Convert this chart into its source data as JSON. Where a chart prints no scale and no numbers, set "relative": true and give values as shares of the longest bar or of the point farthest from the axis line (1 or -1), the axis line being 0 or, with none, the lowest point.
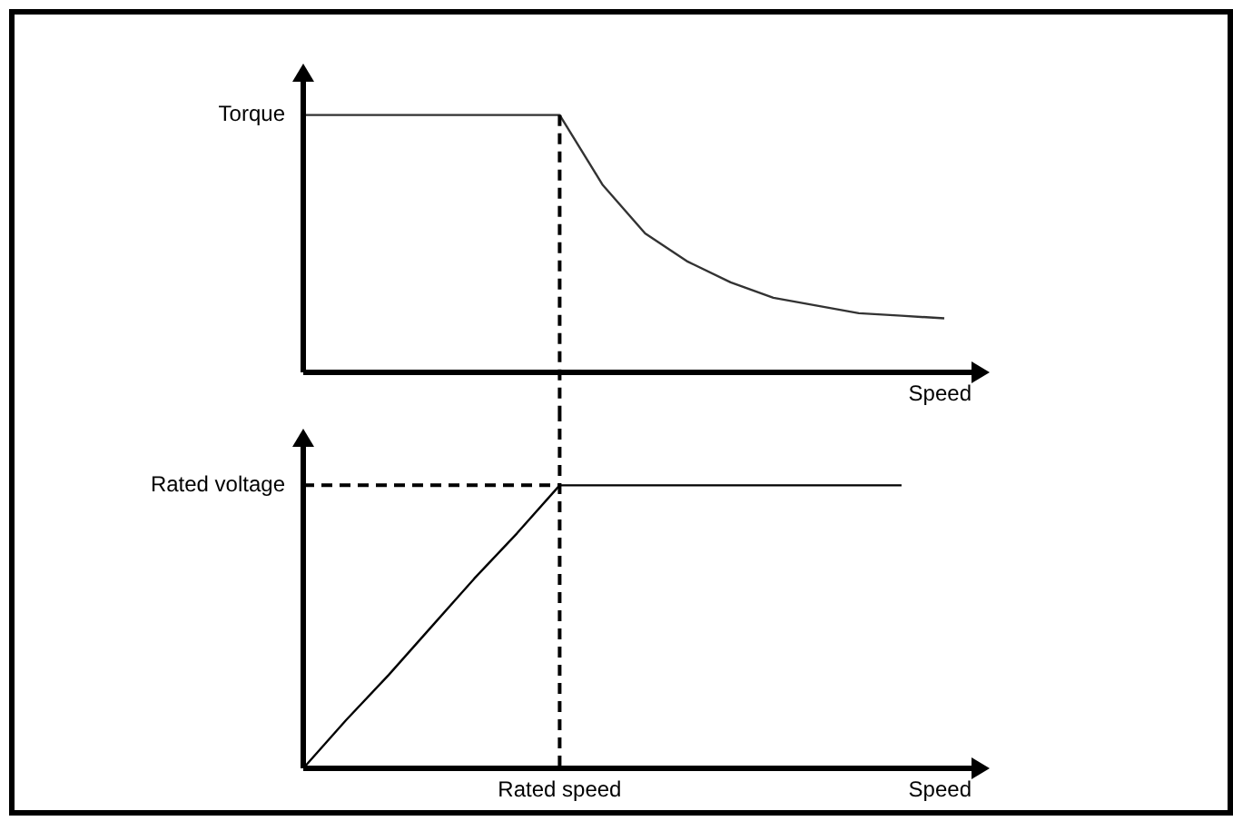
{
  "chart_data": [
    {
      "type": "line",
      "relative": true,
      "xlabel": "Speed",
      "ylabel": "Torque",
      "grid": false,
      "legend": false,
      "marker": "none",
      "categories": [
        null,
        null,
        null,
        null,
        null,
        null,
        null,
        null,
        null,
        null,
        null,
        null,
        null,
        null,
        null,
        null
      ],
      "series": [
        {
          "color": "#333333",
          "values": [
            1,
            1,
            1,
            1,
            1,
            1,
            1,
            0.73,
            0.54,
            0.43,
            0.35,
            0.29,
            0.26,
            0.23,
            0.22,
            0.21
          ]
        }
      ]
    },
    {
      "type": "line",
      "relative": true,
      "xlabel": "Speed",
      "ylabel": "Rated voltage",
      "grid": false,
      "legend": false,
      "marker": "none",
      "categories": [
        null,
        null,
        null,
        null,
        null,
        null,
        null,
        null,
        null,
        null,
        null,
        null,
        null,
        null,
        null,
        null
      ],
      "series": [
        {
          "color": "#000000",
          "values": [
            0,
            0.17,
            0.33,
            0.5,
            0.67,
            0.83,
            1,
            1,
            1,
            1,
            1,
            1,
            1,
            1,
            1,
            null
          ]
        }
      ],
      "annotations": [
        "Rated speed"
      ],
      "ref_lines": [
        {
          "axis": "y",
          "value": 1,
          "line_style": "dashed",
          "color": "#000000"
        }
      ]
    }
  ]
}
